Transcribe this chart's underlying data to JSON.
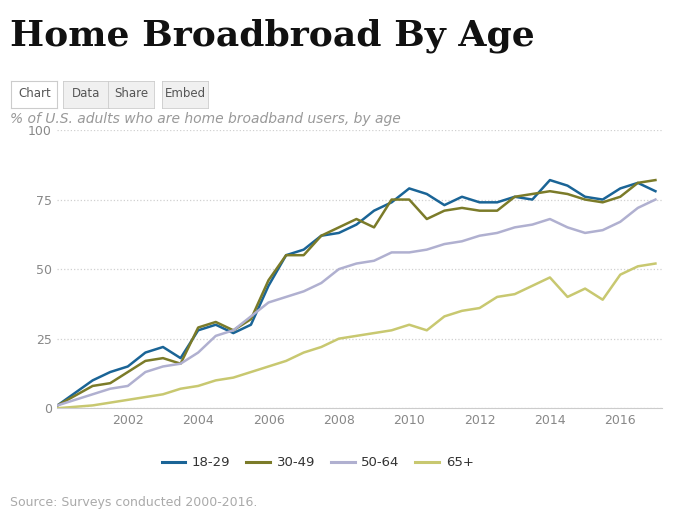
{
  "title": "Home Broadbroad By Age",
  "subtitle": "% of U.S. adults who are home broadband users, by age",
  "source": "Source: Surveys conducted 2000-2016.",
  "tab_labels": [
    "Chart",
    "Data",
    "Share",
    "Embed"
  ],
  "ylim": [
    0,
    100
  ],
  "yticks": [
    0,
    25,
    50,
    75,
    100
  ],
  "bg_color": "#ffffff",
  "grid_color": "#d0d0d0",
  "title_fontsize": 26,
  "subtitle_fontsize": 10,
  "source_fontsize": 9,
  "series": {
    "18-29": {
      "color": "#1a6496",
      "linewidth": 1.8,
      "x": [
        2000,
        2001,
        2001.5,
        2002,
        2002.5,
        2003,
        2003.5,
        2004,
        2004.5,
        2005,
        2005.5,
        2006,
        2006.5,
        2007,
        2007.5,
        2008,
        2008.5,
        2009,
        2009.5,
        2010,
        2010.5,
        2011,
        2011.5,
        2012,
        2012.5,
        2013,
        2013.5,
        2014,
        2014.5,
        2015,
        2015.5,
        2016,
        2016.5,
        2017
      ],
      "y": [
        1,
        10,
        13,
        15,
        20,
        22,
        18,
        28,
        30,
        27,
        30,
        44,
        55,
        57,
        62,
        63,
        66,
        71,
        74,
        79,
        77,
        73,
        76,
        74,
        74,
        76,
        75,
        82,
        80,
        76,
        75,
        79,
        81,
        78
      ]
    },
    "30-49": {
      "color": "#7b7b29",
      "linewidth": 1.8,
      "x": [
        2000,
        2001,
        2001.5,
        2002,
        2002.5,
        2003,
        2003.5,
        2004,
        2004.5,
        2005,
        2005.5,
        2006,
        2006.5,
        2007,
        2007.5,
        2008,
        2008.5,
        2009,
        2009.5,
        2010,
        2010.5,
        2011,
        2011.5,
        2012,
        2012.5,
        2013,
        2013.5,
        2014,
        2014.5,
        2015,
        2015.5,
        2016,
        2016.5,
        2017
      ],
      "y": [
        1,
        8,
        9,
        13,
        17,
        18,
        16,
        29,
        31,
        28,
        32,
        46,
        55,
        55,
        62,
        65,
        68,
        65,
        75,
        75,
        68,
        71,
        72,
        71,
        71,
        76,
        77,
        78,
        77,
        75,
        74,
        76,
        81,
        82
      ]
    },
    "50-64": {
      "color": "#b0b0d0",
      "linewidth": 1.8,
      "x": [
        2000,
        2001,
        2001.5,
        2002,
        2002.5,
        2003,
        2003.5,
        2004,
        2004.5,
        2005,
        2005.5,
        2006,
        2006.5,
        2007,
        2007.5,
        2008,
        2008.5,
        2009,
        2009.5,
        2010,
        2010.5,
        2011,
        2011.5,
        2012,
        2012.5,
        2013,
        2013.5,
        2014,
        2014.5,
        2015,
        2015.5,
        2016,
        2016.5,
        2017
      ],
      "y": [
        1,
        5,
        7,
        8,
        13,
        15,
        16,
        20,
        26,
        28,
        33,
        38,
        40,
        42,
        45,
        50,
        52,
        53,
        56,
        56,
        57,
        59,
        60,
        62,
        63,
        65,
        66,
        68,
        65,
        63,
        64,
        67,
        72,
        75
      ]
    },
    "65+": {
      "color": "#c8c870",
      "linewidth": 1.8,
      "x": [
        2000,
        2001,
        2001.5,
        2002,
        2002.5,
        2003,
        2003.5,
        2004,
        2004.5,
        2005,
        2005.5,
        2006,
        2006.5,
        2007,
        2007.5,
        2008,
        2008.5,
        2009,
        2009.5,
        2010,
        2010.5,
        2011,
        2011.5,
        2012,
        2012.5,
        2013,
        2013.5,
        2014,
        2014.5,
        2015,
        2015.5,
        2016,
        2016.5,
        2017
      ],
      "y": [
        0,
        1,
        2,
        3,
        4,
        5,
        7,
        8,
        10,
        11,
        13,
        15,
        17,
        20,
        22,
        25,
        26,
        27,
        28,
        30,
        28,
        33,
        35,
        36,
        40,
        41,
        44,
        47,
        40,
        43,
        39,
        48,
        51,
        52
      ]
    }
  },
  "legend_order": [
    "18-29",
    "30-49",
    "50-64",
    "65+"
  ],
  "title_color": "#111111",
  "subtitle_color": "#999999",
  "source_color": "#aaaaaa",
  "tab_active": "Chart",
  "tab_color": "#555555",
  "tab_active_color": "#555555",
  "tab_border": "#cccccc",
  "tab_bg": "#f0f0f0"
}
